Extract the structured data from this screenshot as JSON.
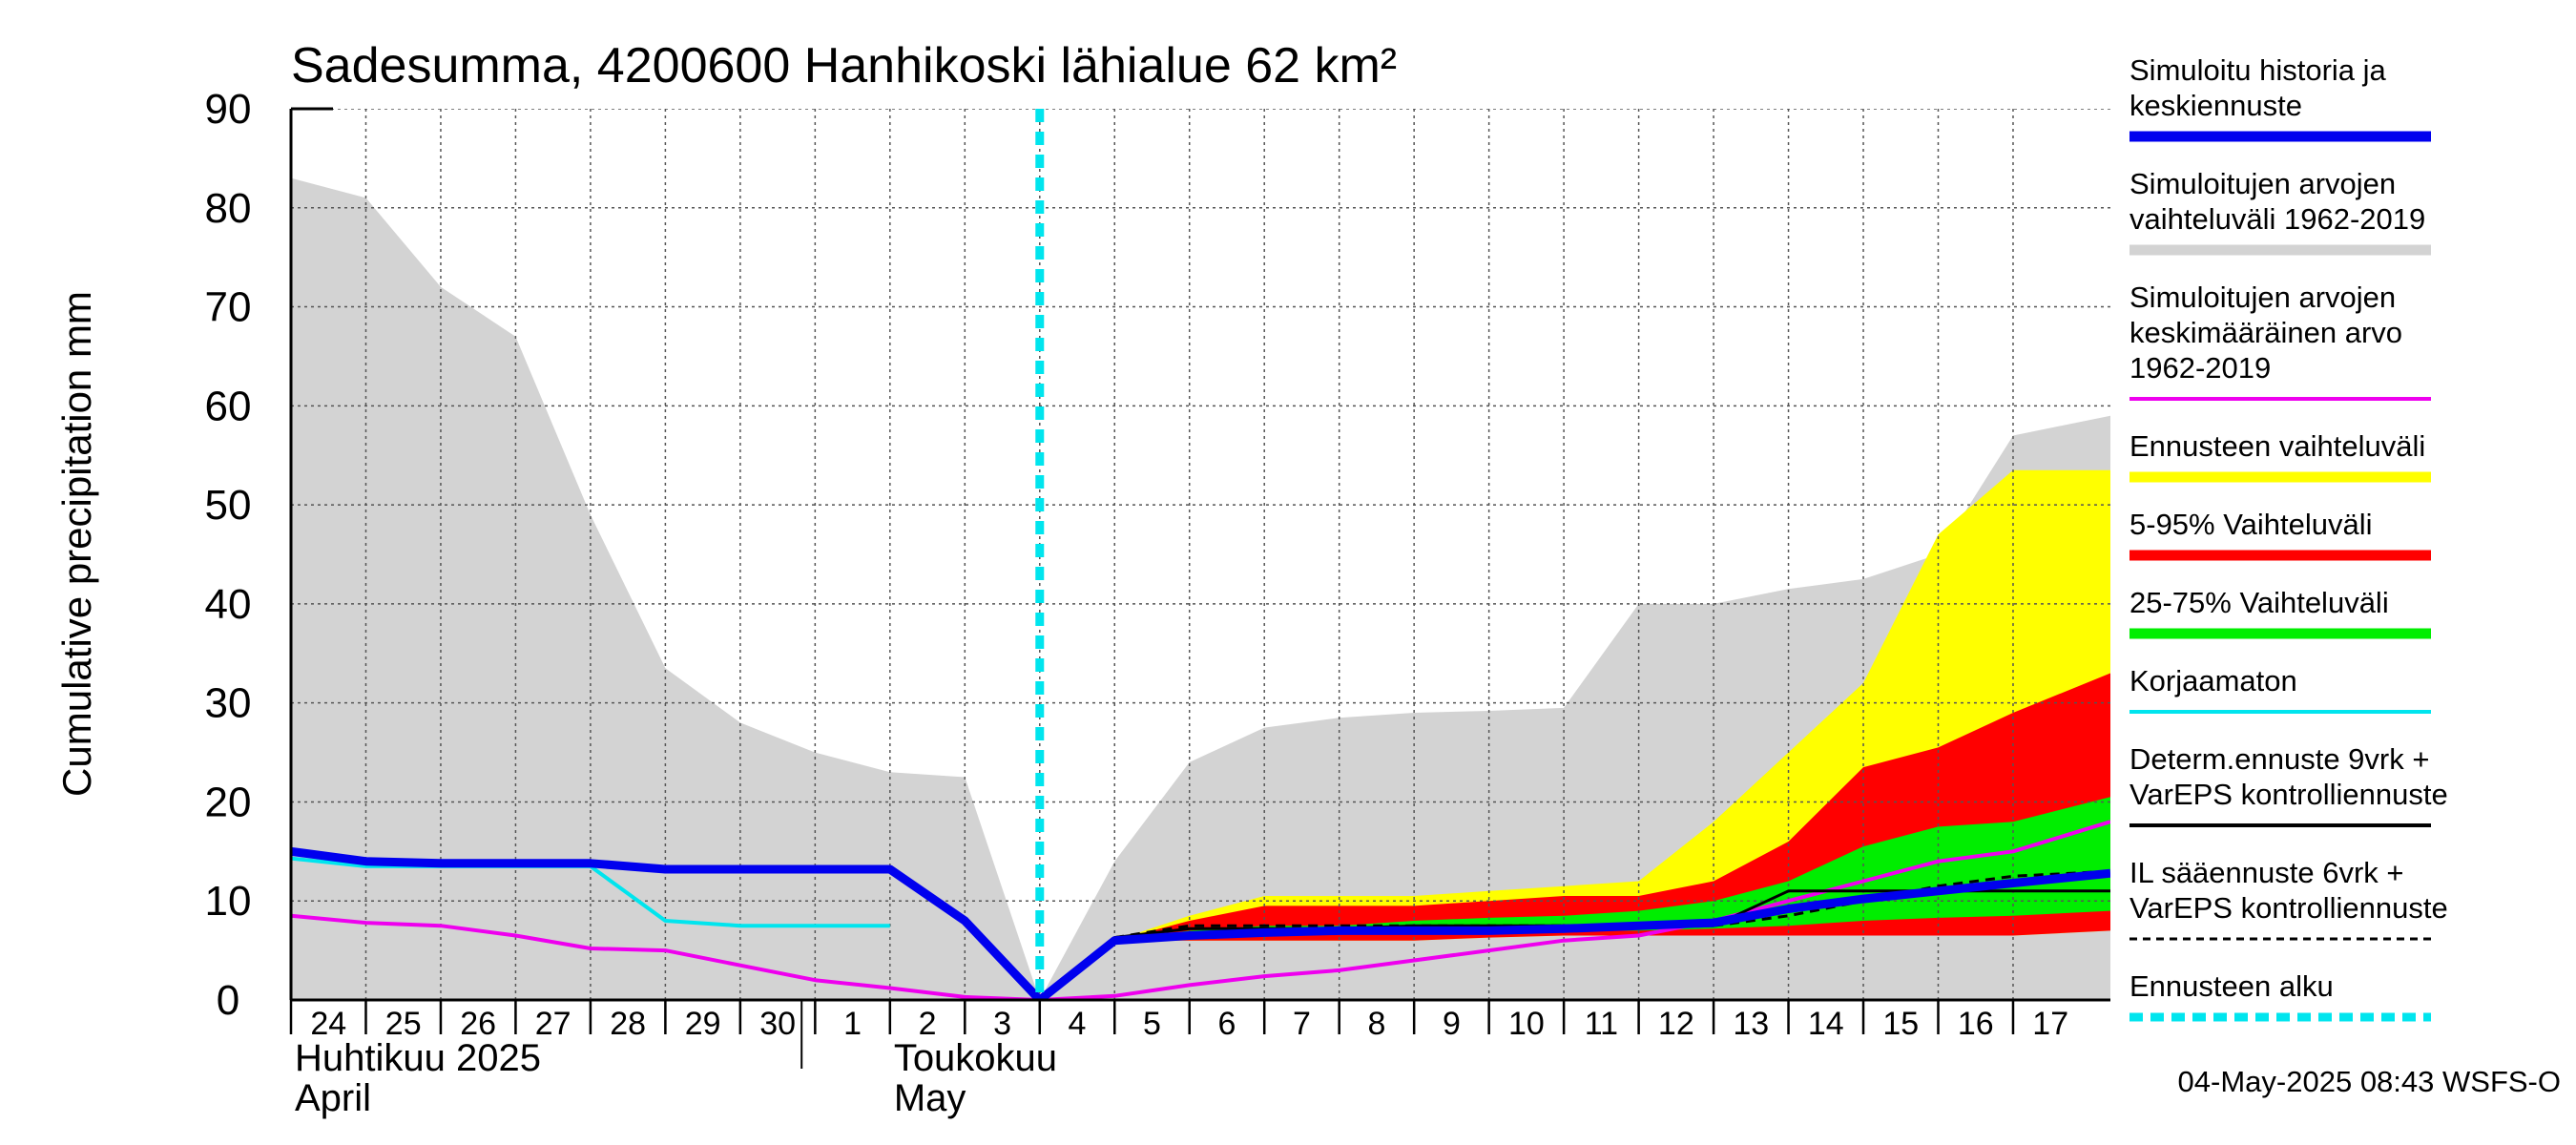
{
  "chart_data": {
    "type": "area",
    "title": "Sadesumma, 4200600 Hanhikoski lähialue 62 km²",
    "ylabel": "Cumulative precipitation   mm",
    "ylim": [
      0,
      90
    ],
    "yticks": [
      0,
      10,
      20,
      30,
      40,
      50,
      60,
      70,
      80,
      90
    ],
    "xlim": [
      0,
      24.3
    ],
    "xticks": [
      {
        "x": 0,
        "label": "24"
      },
      {
        "x": 1,
        "label": "25"
      },
      {
        "x": 2,
        "label": "26"
      },
      {
        "x": 3,
        "label": "27"
      },
      {
        "x": 4,
        "label": "28"
      },
      {
        "x": 5,
        "label": "29"
      },
      {
        "x": 6,
        "label": "30"
      },
      {
        "x": 7,
        "label": "1"
      },
      {
        "x": 8,
        "label": "2"
      },
      {
        "x": 9,
        "label": "3"
      },
      {
        "x": 10,
        "label": "4"
      },
      {
        "x": 11,
        "label": "5"
      },
      {
        "x": 12,
        "label": "6"
      },
      {
        "x": 13,
        "label": "7"
      },
      {
        "x": 14,
        "label": "8"
      },
      {
        "x": 15,
        "label": "9"
      },
      {
        "x": 16,
        "label": "10"
      },
      {
        "x": 17,
        "label": "11"
      },
      {
        "x": 18,
        "label": "12"
      },
      {
        "x": 19,
        "label": "13"
      },
      {
        "x": 20,
        "label": "14"
      },
      {
        "x": 21,
        "label": "15"
      },
      {
        "x": 22,
        "label": "16"
      },
      {
        "x": 23,
        "label": "17"
      }
    ],
    "month_labels": [
      {
        "x": 0,
        "lines": [
          "Huhtikuu  2025",
          "April"
        ]
      },
      {
        "x": 8,
        "lines": [
          "Toukokuu",
          "May"
        ]
      }
    ],
    "month_separator_x": 7,
    "forecast_start_x": 10,
    "grid": true,
    "legend_position": "right",
    "bands": [
      {
        "name": "Simuloitujen arvojen vaihteluväli 1962-2019",
        "color": "#d3d3d3",
        "x": [
          0,
          1,
          2,
          3,
          4,
          5,
          6,
          7,
          8,
          9,
          10,
          11,
          12,
          13,
          14,
          15,
          16,
          17,
          18,
          19,
          20,
          21,
          22,
          23,
          24.3
        ],
        "upper": [
          83,
          81,
          72,
          67,
          49,
          33.5,
          28,
          25,
          23,
          22.5,
          0,
          14,
          24,
          27.5,
          28.5,
          29,
          29.2,
          29.5,
          40,
          40,
          41.5,
          42.5,
          45,
          57,
          59
        ],
        "lower": [
          0,
          0,
          0,
          0,
          0,
          0,
          0,
          0,
          0,
          0,
          0,
          0,
          0,
          0,
          0,
          0,
          0,
          0,
          0,
          0,
          0,
          0,
          0,
          0,
          0
        ]
      },
      {
        "name": "Ennusteen vaihteluväli",
        "color": "#ffff00",
        "x": [
          10,
          11,
          12,
          13,
          14,
          15,
          16,
          17,
          18,
          19,
          20,
          21,
          22,
          23,
          24.3
        ],
        "upper": [
          0,
          6,
          8.5,
          10.5,
          10.5,
          10.5,
          11,
          11.5,
          12,
          18,
          25,
          32,
          47,
          53.5,
          53.5
        ],
        "lower": [
          0,
          6,
          6,
          6,
          6,
          6,
          6.3,
          6.5,
          6.5,
          6.5,
          6.5,
          6.5,
          6.5,
          6.5,
          7
        ]
      },
      {
        "name": "5-95% Vaihteluväli",
        "color": "#ff0000",
        "x": [
          10,
          11,
          12,
          13,
          14,
          15,
          16,
          17,
          18,
          19,
          20,
          21,
          22,
          23,
          24.3
        ],
        "upper": [
          0,
          6,
          8,
          9.5,
          9.5,
          9.5,
          10,
          10.5,
          10.5,
          12,
          16,
          23.5,
          25.5,
          29,
          33
        ],
        "lower": [
          0,
          6,
          6,
          6,
          6,
          6,
          6.3,
          6.5,
          6.5,
          6.5,
          6.5,
          6.5,
          6.5,
          6.5,
          7
        ]
      },
      {
        "name": "25-75% Vaihteluväli",
        "color": "#00ee00",
        "x": [
          10,
          11,
          12,
          13,
          14,
          15,
          16,
          17,
          18,
          19,
          20,
          21,
          22,
          23,
          24.3
        ],
        "upper": [
          0,
          6,
          7,
          7.5,
          7.5,
          8,
          8.3,
          8.5,
          9,
          10,
          12,
          15.5,
          17.5,
          18,
          20.5
        ],
        "lower": [
          0,
          6,
          6.5,
          6.8,
          6.8,
          7,
          7,
          7,
          7,
          7.2,
          7.5,
          8,
          8.3,
          8.5,
          9
        ]
      }
    ],
    "series": [
      {
        "name": "Simuloitujen arvojen keskimääräinen arvo 1962-2019",
        "color": "#ee00ee",
        "x": [
          0,
          1,
          2,
          3,
          4,
          5,
          6,
          7,
          8,
          9,
          10,
          11,
          12,
          13,
          14,
          15,
          16,
          17,
          18,
          19,
          20,
          21,
          22,
          23,
          24.3
        ],
        "y": [
          8.5,
          7.8,
          7.5,
          6.5,
          5.2,
          5,
          3.5,
          2,
          1.2,
          0.3,
          0,
          0.4,
          1.5,
          2.4,
          3,
          4,
          5,
          6,
          6.5,
          8,
          10,
          12,
          14,
          15,
          18
        ]
      },
      {
        "name": "Korjaamaton",
        "color": "#00e5ee",
        "x": [
          0,
          1,
          2,
          3,
          4,
          5,
          6,
          7,
          8
        ],
        "y": [
          14.3,
          13.5,
          13.5,
          13.5,
          13.5,
          8,
          7.5,
          7.5,
          7.5
        ]
      },
      {
        "name": "IL sääennuste 6vrk + VarEPS kontrolliennuste",
        "color": "#000000",
        "dashed": true,
        "x": [
          10,
          11,
          12,
          13,
          14,
          15,
          16,
          17,
          18,
          19,
          20,
          21,
          22,
          23,
          24.3
        ],
        "y": [
          0,
          6.3,
          7.5,
          7.5,
          7.5,
          7.5,
          7.5,
          7.5,
          7.5,
          7.5,
          8.5,
          10,
          11.5,
          12.5,
          13
        ]
      },
      {
        "name": "Determ.ennuste 9vrk + VarEPS kontrolliennuste",
        "color": "#000000",
        "x": [
          10,
          11,
          12,
          13,
          14,
          15,
          16,
          17,
          18,
          19,
          20,
          21,
          22,
          23,
          24.3
        ],
        "y": [
          0,
          6.3,
          7.2,
          7.2,
          7.2,
          7.5,
          7.5,
          7.5,
          7.5,
          7.5,
          11,
          11,
          11,
          11,
          11
        ]
      },
      {
        "name": "Simuloitu historia ja keskiennuste",
        "color": "#0000ee",
        "thick": true,
        "x": [
          0,
          1,
          2,
          3,
          4,
          5,
          6,
          7,
          8,
          9,
          10,
          11,
          12,
          13,
          14,
          15,
          16,
          17,
          18,
          19,
          20,
          21,
          22,
          23,
          24.3
        ],
        "y": [
          15,
          14,
          13.8,
          13.8,
          13.8,
          13.2,
          13.2,
          13.2,
          13.2,
          8,
          0,
          6,
          6.5,
          6.8,
          7,
          7,
          7,
          7.2,
          7.5,
          7.8,
          9.2,
          10.2,
          11,
          11.8,
          12.8
        ]
      }
    ]
  },
  "legend": {
    "items": [
      {
        "lines": [
          "Simuloitu historia ja",
          "keskiennuste"
        ],
        "color": "#0000ee",
        "style": "thick"
      },
      {
        "lines": [
          "Simuloitujen arvojen",
          "vaihteluväli 1962-2019"
        ],
        "color": "#d3d3d3",
        "style": "thick"
      },
      {
        "lines": [
          "Simuloitujen arvojen",
          "keskimääräinen arvo",
          "   1962-2019"
        ],
        "color": "#ee00ee",
        "style": "thin"
      },
      {
        "lines": [
          "Ennusteen vaihteluväli"
        ],
        "color": "#ffff00",
        "style": "thick"
      },
      {
        "lines": [
          "5-95% Vaihteluväli"
        ],
        "color": "#ff0000",
        "style": "thick"
      },
      {
        "lines": [
          "25-75% Vaihteluväli"
        ],
        "color": "#00ee00",
        "style": "thick"
      },
      {
        "lines": [
          "Korjaamaton"
        ],
        "color": "#00e5ee",
        "style": "thin"
      },
      {
        "lines": [
          "Determ.ennuste 9vrk +",
          "VarEPS kontrolliennuste"
        ],
        "color": "#000000",
        "style": "thin"
      },
      {
        "lines": [
          "IL sääennuste 6vrk  +",
          "  VarEPS kontrolliennuste"
        ],
        "color": "#000000",
        "style": "dashed"
      },
      {
        "lines": [
          "Ennusteen alku"
        ],
        "color": "#00e5ee",
        "style": "dotted"
      }
    ]
  },
  "footer": {
    "timestamp": "04-May-2025 08:43 WSFS-O"
  }
}
